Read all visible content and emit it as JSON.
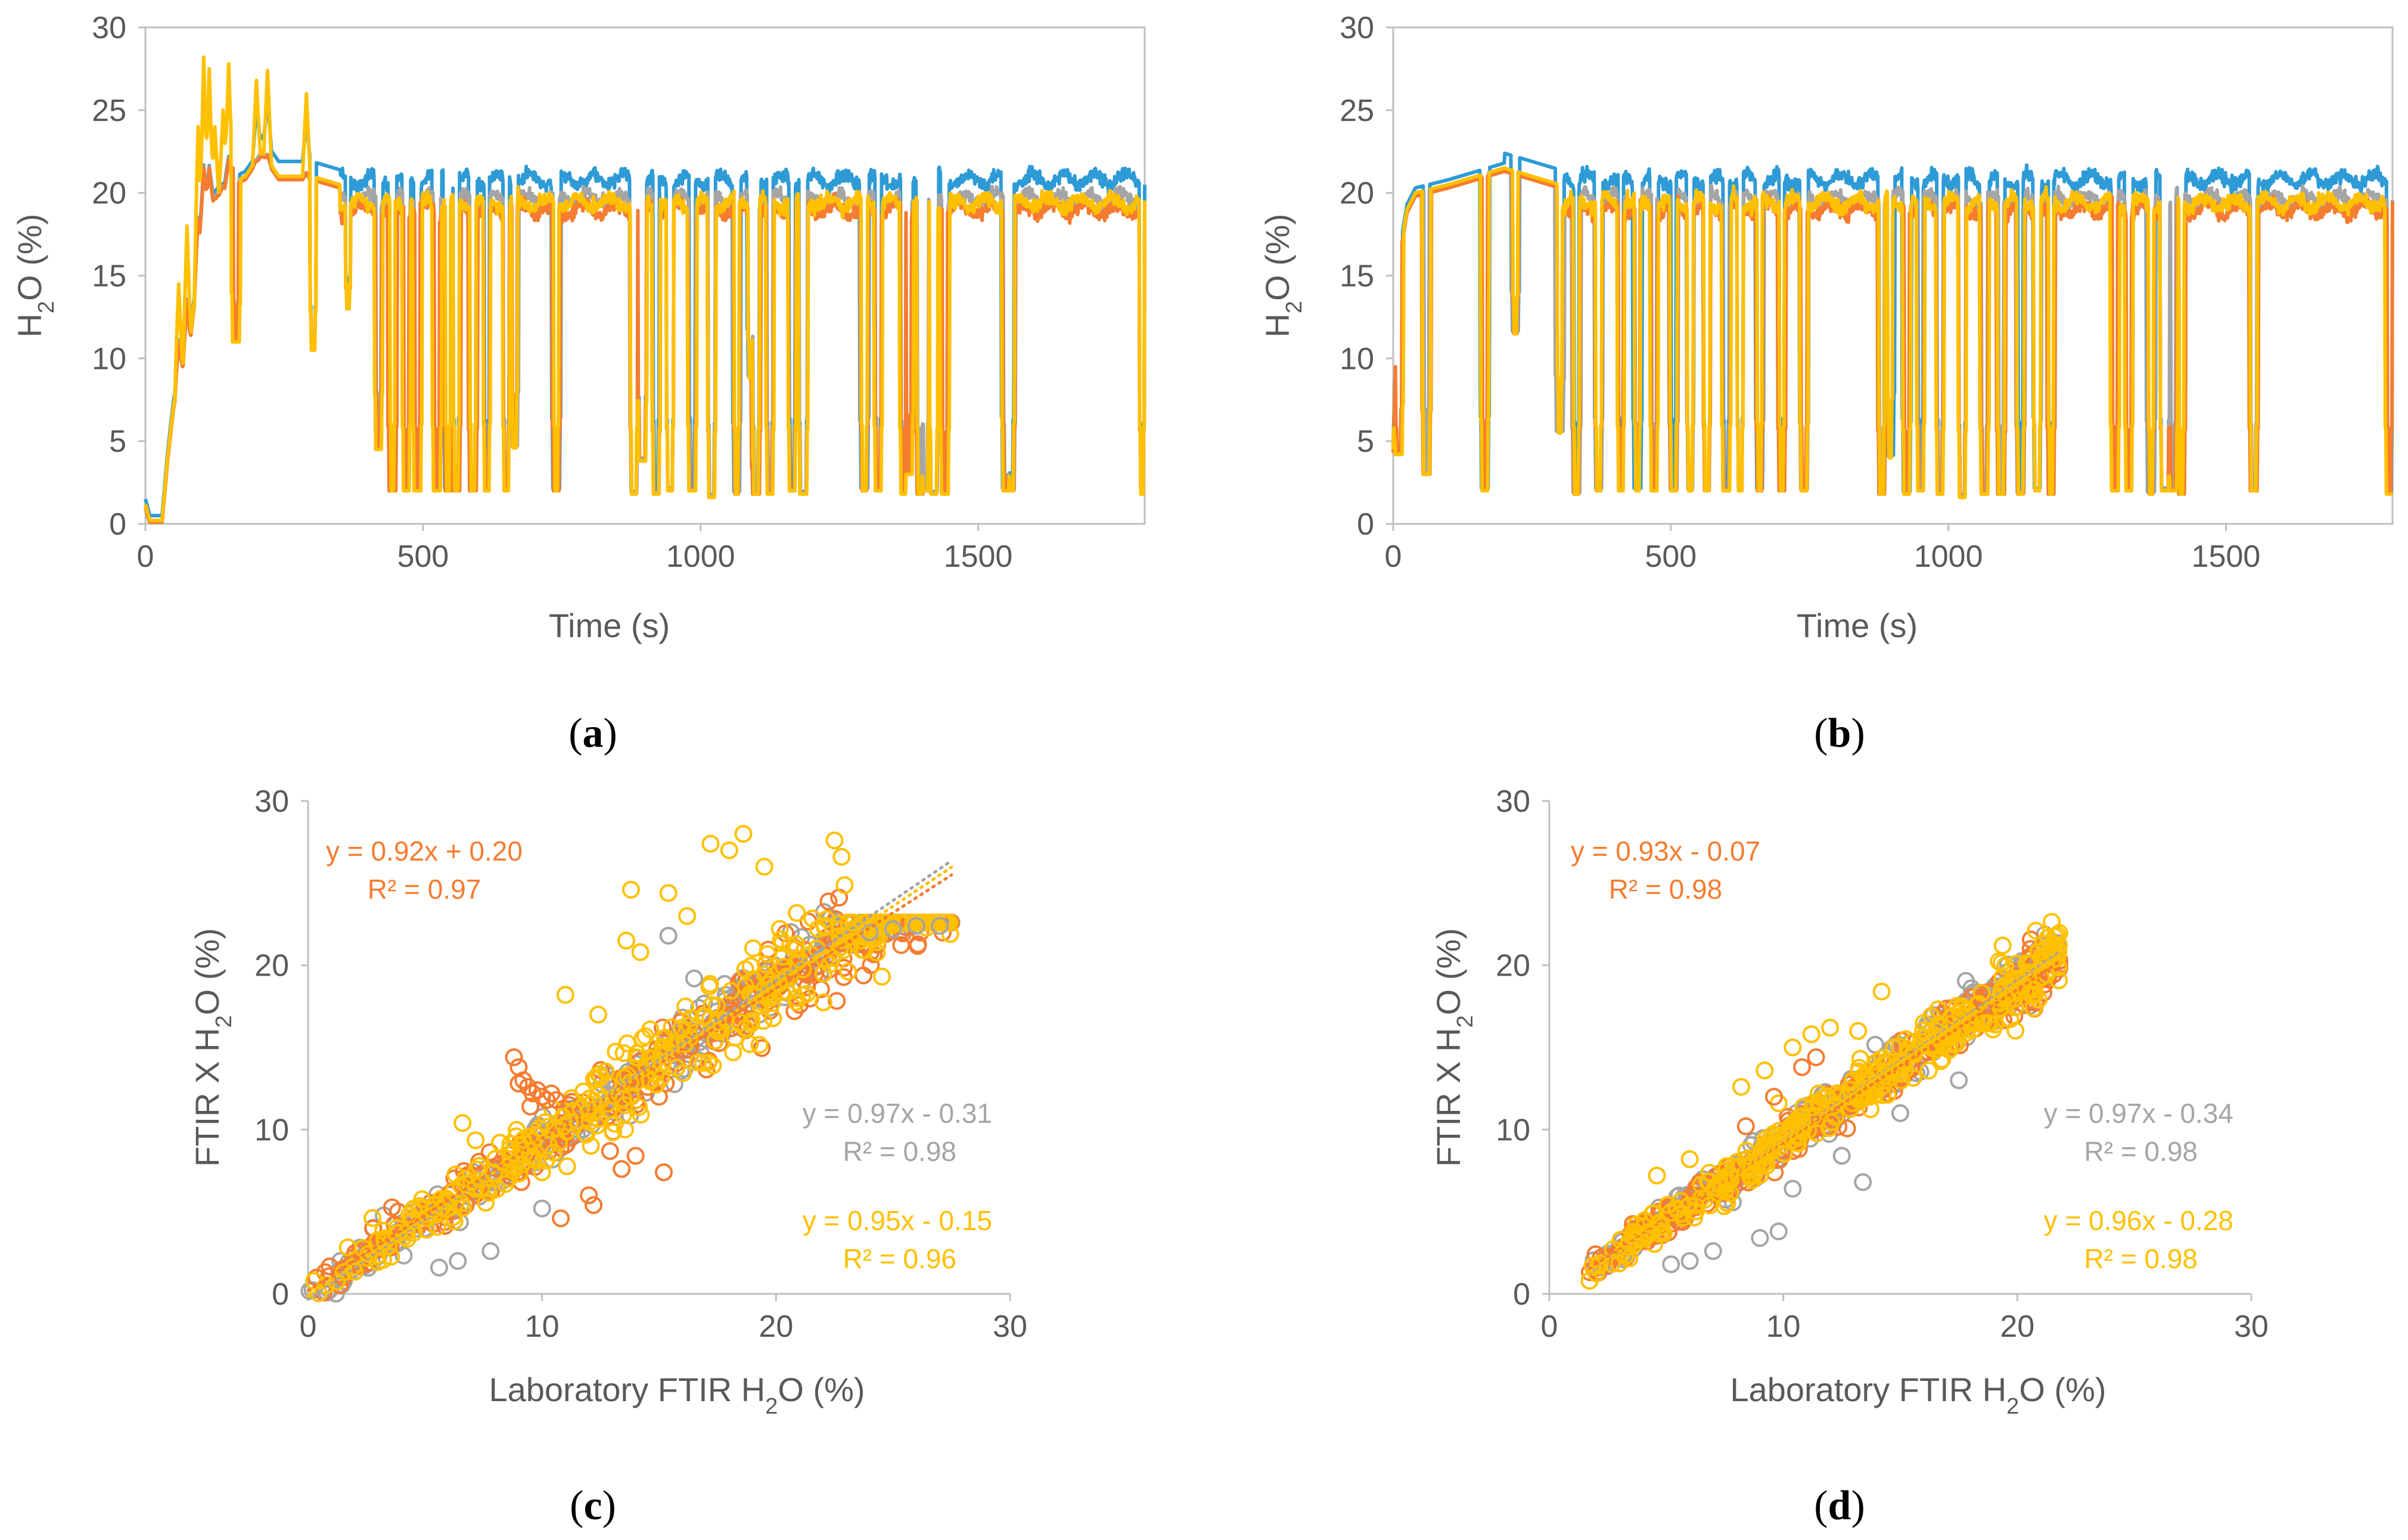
{
  "colors": {
    "blue": "#2E9BD6",
    "orange": "#F57C30",
    "gray": "#A5A5A5",
    "yellow": "#FFC000",
    "axis": "#BFBFBF",
    "text": "#595959"
  },
  "chart_data": [
    {
      "id": "a",
      "type": "line",
      "panel_label": "a",
      "xlabel": "Time (s)",
      "ylabel_main": "H",
      "ylabel_sub": "2",
      "ylabel_tail": "O (%)",
      "xlim": [
        0,
        1800
      ],
      "ylim": [
        0,
        30
      ],
      "xticks": [
        "0",
        "500",
        "1000",
        "1500"
      ],
      "xtick_values": [
        0,
        500,
        1000,
        1500
      ],
      "yticks": [
        "0",
        "5",
        "10",
        "15",
        "20",
        "25",
        "30"
      ],
      "ytick_values": [
        0,
        5,
        10,
        15,
        20,
        25,
        30
      ],
      "series": [
        {
          "name": "blue",
          "color": "blue",
          "level": 20.8
        },
        {
          "name": "gray",
          "color": "gray",
          "level": 19.6
        },
        {
          "name": "orange",
          "color": "orange",
          "level": 19.0
        },
        {
          "name": "yellow",
          "color": "yellow",
          "level": 19.4
        }
      ],
      "startup": [
        [
          0,
          1.2
        ],
        [
          8,
          0.2
        ],
        [
          30,
          0.2
        ],
        [
          40,
          4
        ],
        [
          50,
          7
        ],
        [
          60,
          9
        ],
        [
          70,
          10
        ],
        [
          80,
          11
        ],
        [
          90,
          14
        ],
        [
          100,
          17
        ],
        [
          110,
          19
        ],
        [
          130,
          20
        ],
        [
          150,
          20.5
        ],
        [
          180,
          21
        ],
        [
          210,
          22.5
        ],
        [
          240,
          21
        ],
        [
          300,
          21
        ],
        [
          350,
          20.5
        ]
      ],
      "spikes": [
        [
          60,
          14.5
        ],
        [
          75,
          18
        ],
        [
          95,
          24
        ],
        [
          105,
          28.2
        ],
        [
          115,
          27.5
        ],
        [
          125,
          24
        ],
        [
          140,
          25
        ],
        [
          150,
          27.8
        ],
        [
          160,
          27.5
        ],
        [
          200,
          26.8
        ],
        [
          220,
          27.4
        ],
        [
          290,
          26
        ]
      ],
      "dips": [
        [
          163,
          11
        ],
        [
          302,
          10.5
        ],
        [
          365,
          13
        ],
        [
          420,
          4.5
        ],
        [
          445,
          2
        ],
        [
          470,
          2
        ],
        [
          490,
          2
        ],
        [
          525,
          2
        ],
        [
          545,
          2
        ],
        [
          560,
          2
        ],
        [
          590,
          2
        ],
        [
          615,
          2
        ],
        [
          650,
          2
        ],
        [
          665,
          4.6
        ],
        [
          740,
          2
        ],
        [
          880,
          1.8
        ],
        [
          895,
          3.8
        ],
        [
          920,
          1.8
        ],
        [
          945,
          2
        ],
        [
          985,
          2
        ],
        [
          1020,
          1.6
        ],
        [
          1065,
          1.8
        ],
        [
          1090,
          8.8
        ],
        [
          1100,
          1.8
        ],
        [
          1125,
          1.8
        ],
        [
          1165,
          2
        ],
        [
          1185,
          1.8
        ],
        [
          1295,
          2
        ],
        [
          1320,
          2
        ],
        [
          1365,
          1.8
        ],
        [
          1375,
          3
        ],
        [
          1395,
          1.8
        ],
        [
          1405,
          2
        ],
        [
          1420,
          1.8
        ],
        [
          1440,
          1.8
        ],
        [
          1550,
          2
        ],
        [
          1560,
          2
        ],
        [
          1795,
          1.8
        ]
      ]
    },
    {
      "id": "b",
      "type": "line",
      "panel_label": "b",
      "xlabel": "Time (s)",
      "ylabel_main": "H",
      "ylabel_sub": "2",
      "ylabel_tail": "O (%)",
      "xlim": [
        0,
        1800
      ],
      "ylim": [
        0,
        30
      ],
      "xticks": [
        "0",
        "500",
        "1000",
        "1500"
      ],
      "xtick_values": [
        0,
        500,
        1000,
        1500
      ],
      "yticks": [
        "0",
        "5",
        "10",
        "15",
        "20",
        "25",
        "30"
      ],
      "ytick_values": [
        0,
        5,
        10,
        15,
        20,
        25,
        30
      ],
      "series": [
        {
          "name": "blue",
          "color": "blue",
          "level": 20.8
        },
        {
          "name": "gray",
          "color": "gray",
          "level": 19.6
        },
        {
          "name": "orange",
          "color": "orange",
          "level": 19.0
        },
        {
          "name": "yellow",
          "color": "yellow",
          "level": 19.4
        }
      ],
      "startup": [
        [
          0,
          4.5
        ],
        [
          5,
          11
        ],
        [
          15,
          17
        ],
        [
          25,
          19
        ],
        [
          40,
          20
        ],
        [
          100,
          20.5
        ],
        [
          200,
          21.5
        ],
        [
          300,
          20.5
        ]
      ],
      "spikes": [],
      "dips": [
        [
          10,
          4.2
        ],
        [
          60,
          3
        ],
        [
          165,
          2
        ],
        [
          220,
          11.5
        ],
        [
          300,
          5.5
        ],
        [
          330,
          1.8
        ],
        [
          370,
          2
        ],
        [
          410,
          2
        ],
        [
          440,
          2
        ],
        [
          470,
          2
        ],
        [
          505,
          2
        ],
        [
          535,
          2
        ],
        [
          565,
          2
        ],
        [
          600,
          2
        ],
        [
          625,
          2
        ],
        [
          660,
          2
        ],
        [
          700,
          2
        ],
        [
          740,
          2
        ],
        [
          880,
          1.8
        ],
        [
          895,
          4
        ],
        [
          925,
          1.8
        ],
        [
          950,
          2
        ],
        [
          985,
          1.8
        ],
        [
          1025,
          1.6
        ],
        [
          1065,
          1.8
        ],
        [
          1095,
          1.8
        ],
        [
          1130,
          1.8
        ],
        [
          1160,
          2
        ],
        [
          1185,
          1.8
        ],
        [
          1300,
          2
        ],
        [
          1325,
          2
        ],
        [
          1365,
          1.8
        ],
        [
          1390,
          2
        ],
        [
          1405,
          2
        ],
        [
          1420,
          1.8
        ],
        [
          1550,
          2
        ],
        [
          1795,
          1.8
        ]
      ]
    },
    {
      "id": "c",
      "type": "scatter",
      "panel_label": "c",
      "xlabel_main": "Laboratory FTIR H",
      "xlabel_sub": "2",
      "xlabel_tail": "O (%)",
      "ylabel_main": "FTIR X H",
      "ylabel_sub": "2",
      "ylabel_tail": "O (%)",
      "xlim": [
        0,
        30
      ],
      "ylim": [
        0,
        30
      ],
      "xticks": [
        "0",
        "10",
        "20",
        "30"
      ],
      "xtick_values": [
        0,
        10,
        20,
        30
      ],
      "yticks": [
        "0",
        "10",
        "20",
        "30"
      ],
      "ytick_values": [
        0,
        10,
        20,
        30
      ],
      "series": [
        {
          "name": "gray",
          "color": "gray",
          "slope": 0.97,
          "intercept": -0.31,
          "xmin": 0,
          "xmax": 27.5,
          "seed": 11,
          "count": 320,
          "spread": 0.9
        },
        {
          "name": "orange",
          "color": "orange",
          "slope": 0.92,
          "intercept": 0.2,
          "xmin": 0,
          "xmax": 27.5,
          "seed": 23,
          "count": 320,
          "spread": 1.0
        },
        {
          "name": "yellow",
          "color": "yellow",
          "slope": 0.95,
          "intercept": -0.15,
          "xmin": 0,
          "xmax": 27.5,
          "seed": 37,
          "count": 360,
          "spread": 1.2
        }
      ],
      "outliers": [
        {
          "color": "yellow",
          "points": [
            [
              17.2,
              27.4
            ],
            [
              18.0,
              27.0
            ],
            [
              18.6,
              28.0
            ],
            [
              19.5,
              26.0
            ],
            [
              13.8,
              24.6
            ],
            [
              15.4,
              24.4
            ],
            [
              22.5,
              27.6
            ],
            [
              22.8,
              26.6
            ],
            [
              13.6,
              21.5
            ],
            [
              14.2,
              20.8
            ],
            [
              11.0,
              18.2
            ],
            [
              6.6,
              10.4
            ],
            [
              8.2,
              9.2
            ],
            [
              12.4,
              17.0
            ],
            [
              16.2,
              23.0
            ]
          ]
        },
        {
          "color": "orange",
          "points": [
            [
              8.8,
              14.4
            ],
            [
              9.0,
              13.8
            ],
            [
              9.2,
              13.0
            ],
            [
              9.4,
              12.6
            ],
            [
              9.6,
              12.2
            ],
            [
              9.8,
              12.4
            ],
            [
              10.0,
              12.0
            ],
            [
              10.2,
              11.8
            ],
            [
              9.0,
              12.8
            ],
            [
              9.5,
              11.4
            ],
            [
              10.4,
              12.2
            ],
            [
              10.6,
              11.8
            ],
            [
              12.0,
              6.0
            ],
            [
              12.2,
              5.4
            ],
            [
              13.4,
              7.6
            ],
            [
              14.0,
              8.4
            ],
            [
              15.2,
              7.4
            ],
            [
              10.8,
              4.6
            ]
          ]
        },
        {
          "color": "gray",
          "points": [
            [
              7.8,
              2.6
            ],
            [
              6.4,
              2.0
            ],
            [
              5.6,
              1.6
            ],
            [
              10.0,
              5.2
            ],
            [
              15.4,
              21.8
            ],
            [
              16.5,
              19.2
            ],
            [
              26.0,
              22.4
            ],
            [
              27.0,
              22.4
            ],
            [
              25.0,
              22.2
            ],
            [
              24.0,
              22.0
            ]
          ]
        }
      ],
      "equations": [
        {
          "color": "orange",
          "line1": "y = 0.92x + 0.20",
          "line2": "R² = 0.97",
          "anchor": "top-left"
        },
        {
          "color": "gray",
          "line1": "y = 0.97x - 0.31",
          "line2": "R² = 0.98",
          "anchor": "middle-right"
        },
        {
          "color": "yellow",
          "line1": "y = 0.95x - 0.15",
          "line2": "R² = 0.96",
          "anchor": "bottom-right"
        }
      ]
    },
    {
      "id": "d",
      "type": "scatter",
      "panel_label": "d",
      "xlabel_main": "Laboratory FTIR H",
      "xlabel_sub": "2",
      "xlabel_tail": "O (%)",
      "ylabel_main": "FTIR X H",
      "ylabel_sub": "2",
      "ylabel_tail": "O (%)",
      "xlim": [
        0,
        30
      ],
      "ylim": [
        0,
        30
      ],
      "xticks": [
        "0",
        "10",
        "20",
        "30"
      ],
      "xtick_values": [
        0,
        10,
        20,
        30
      ],
      "yticks": [
        "0",
        "10",
        "20",
        "30"
      ],
      "ytick_values": [
        0,
        10,
        20,
        30
      ],
      "series": [
        {
          "name": "gray",
          "color": "gray",
          "slope": 0.97,
          "intercept": -0.34,
          "xmin": 1.7,
          "xmax": 21.8,
          "seed": 51,
          "count": 300,
          "spread": 0.7
        },
        {
          "name": "orange",
          "color": "orange",
          "slope": 0.93,
          "intercept": -0.07,
          "xmin": 1.7,
          "xmax": 21.8,
          "seed": 63,
          "count": 300,
          "spread": 0.7
        },
        {
          "name": "yellow",
          "color": "yellow",
          "slope": 0.96,
          "intercept": -0.28,
          "xmin": 1.7,
          "xmax": 21.8,
          "seed": 77,
          "count": 340,
          "spread": 0.9
        }
      ],
      "outliers": [
        {
          "color": "yellow",
          "points": [
            [
              8.2,
              12.6
            ],
            [
              9.2,
              13.6
            ],
            [
              10.4,
              15.0
            ],
            [
              11.2,
              15.8
            ],
            [
              12.0,
              16.2
            ],
            [
              13.2,
              16.0
            ],
            [
              14.2,
              18.4
            ],
            [
              9.8,
              11.6
            ],
            [
              4.6,
              7.2
            ],
            [
              6.0,
              8.2
            ]
          ]
        },
        {
          "color": "gray",
          "points": [
            [
              13.4,
              6.8
            ],
            [
              17.5,
              13.0
            ],
            [
              15.0,
              11.0
            ],
            [
              9.8,
              3.8
            ],
            [
              9.0,
              3.4
            ],
            [
              7.0,
              2.6
            ],
            [
              6.0,
              2.0
            ],
            [
              5.2,
              1.8
            ],
            [
              10.4,
              6.4
            ],
            [
              12.5,
              8.4
            ]
          ]
        },
        {
          "color": "orange",
          "points": [
            [
              9.6,
              12.0
            ],
            [
              10.8,
              13.8
            ],
            [
              8.4,
              10.2
            ],
            [
              11.4,
              14.4
            ]
          ]
        }
      ],
      "equations": [
        {
          "color": "orange",
          "line1": "y = 0.93x - 0.07",
          "line2": "R² = 0.98",
          "anchor": "top-left"
        },
        {
          "color": "gray",
          "line1": "y = 0.97x - 0.34",
          "line2": "R² = 0.98",
          "anchor": "middle-right"
        },
        {
          "color": "yellow",
          "line1": "y = 0.96x - 0.28",
          "line2": "R² = 0.98",
          "anchor": "bottom-right"
        }
      ]
    }
  ]
}
